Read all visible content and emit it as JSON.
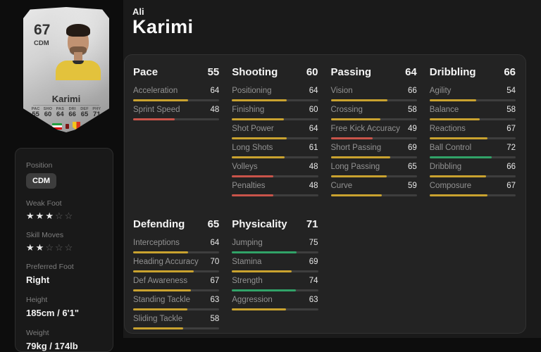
{
  "player": {
    "first_name": "Ali",
    "last_name": "Karimi",
    "card": {
      "rating": "67",
      "position": "CDM",
      "name": "Karimi",
      "stat_labels": [
        "PAC",
        "SHO",
        "PAS",
        "DRI",
        "DEF",
        "PHY"
      ],
      "stat_values": [
        "55",
        "60",
        "64",
        "66",
        "65",
        "71"
      ],
      "nation_icon": "iran-flag",
      "league_icon": "league-crest",
      "club_icon": "yellow-red-crest"
    }
  },
  "profile": {
    "position_label": "Position",
    "position_value": "CDM",
    "weak_foot_label": "Weak Foot",
    "weak_foot_rating": 3,
    "skill_moves_label": "Skill Moves",
    "skill_moves_rating": 2,
    "star_max": 5,
    "preferred_foot_label": "Preferred Foot",
    "preferred_foot_value": "Right",
    "height_label": "Height",
    "height_value": "185cm / 6'1\"",
    "weight_label": "Weight",
    "weight_value": "79kg / 174lb"
  },
  "attributes": {
    "groups": [
      {
        "name": "Pace",
        "total": 55,
        "col": 1,
        "row": 1,
        "stats": [
          {
            "label": "Acceleration",
            "value": 64
          },
          {
            "label": "Sprint Speed",
            "value": 48
          }
        ]
      },
      {
        "name": "Shooting",
        "total": 60,
        "col": 2,
        "row": 1,
        "stats": [
          {
            "label": "Positioning",
            "value": 64
          },
          {
            "label": "Finishing",
            "value": 60
          },
          {
            "label": "Shot Power",
            "value": 64
          },
          {
            "label": "Long Shots",
            "value": 61
          },
          {
            "label": "Volleys",
            "value": 48
          },
          {
            "label": "Penalties",
            "value": 48
          }
        ]
      },
      {
        "name": "Passing",
        "total": 64,
        "col": 3,
        "row": 1,
        "stats": [
          {
            "label": "Vision",
            "value": 66
          },
          {
            "label": "Crossing",
            "value": 58
          },
          {
            "label": "Free Kick Accuracy",
            "value": 49
          },
          {
            "label": "Short Passing",
            "value": 69
          },
          {
            "label": "Long Passing",
            "value": 65
          },
          {
            "label": "Curve",
            "value": 59
          }
        ]
      },
      {
        "name": "Dribbling",
        "total": 66,
        "col": 4,
        "row": 1,
        "stats": [
          {
            "label": "Agility",
            "value": 54
          },
          {
            "label": "Balance",
            "value": 58
          },
          {
            "label": "Reactions",
            "value": 67
          },
          {
            "label": "Ball Control",
            "value": 72
          },
          {
            "label": "Dribbling",
            "value": 66
          },
          {
            "label": "Composure",
            "value": 67
          }
        ]
      },
      {
        "name": "Defending",
        "total": 65,
        "col": 1,
        "row": 2,
        "stats": [
          {
            "label": "Interceptions",
            "value": 64
          },
          {
            "label": "Heading Accuracy",
            "value": 70
          },
          {
            "label": "Def Awareness",
            "value": 67
          },
          {
            "label": "Standing Tackle",
            "value": 63
          },
          {
            "label": "Sliding Tackle",
            "value": 58
          }
        ]
      },
      {
        "name": "Physicality",
        "total": 71,
        "col": 2,
        "row": 2,
        "stats": [
          {
            "label": "Jumping",
            "value": 75
          },
          {
            "label": "Stamina",
            "value": 69
          },
          {
            "label": "Strength",
            "value": 74
          },
          {
            "label": "Aggression",
            "value": 63
          }
        ]
      }
    ]
  },
  "theme": {
    "green": "#31a368",
    "yellow": "#c9a22f",
    "red": "#c9544a",
    "green_min": 71,
    "yellow_min": 50,
    "track": "#3e3e3e",
    "panel_bg": "#232323",
    "card_silver": "#c2c2c2"
  }
}
